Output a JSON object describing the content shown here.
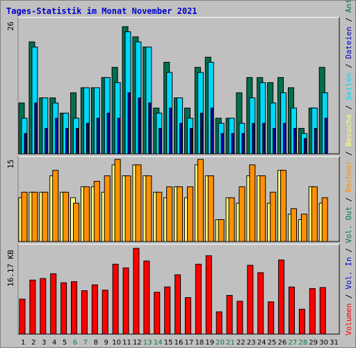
{
  "title": "Tages-Statistik im Monat November 2021",
  "colors": {
    "anfragen": "#007050",
    "dateien": "#00d8f8",
    "seiten": "#0000c0",
    "besuche": "#ffff80",
    "rechner": "#ff9000",
    "volumen": "#ff0000",
    "weekday": "#000000",
    "weekend": "#008040",
    "separator": "#000000"
  },
  "chart_data": {
    "type": "bar",
    "x": [
      "1",
      "2",
      "3",
      "4",
      "5",
      "6",
      "7",
      "8",
      "9",
      "10",
      "11",
      "12",
      "13",
      "14",
      "15",
      "16",
      "17",
      "18",
      "19",
      "20",
      "21",
      "22",
      "23",
      "24",
      "25",
      "26",
      "27",
      "28",
      "29",
      "30",
      "31"
    ],
    "weekend": [
      6,
      7,
      13,
      14,
      20,
      21,
      27,
      28
    ],
    "panels": [
      {
        "id": "hits",
        "max_label": "26",
        "max": 26,
        "series": [
          {
            "name": "Anfragen",
            "values": [
              10,
              22,
              11,
              11,
              8,
              12,
              13,
              13,
              15,
              17,
              25,
              23,
              21,
              9,
              18,
              11,
              9,
              17,
              19,
              7,
              7,
              12,
              15,
              15,
              14,
              15,
              13,
              5,
              9,
              17,
              0
            ]
          },
          {
            "name": "Dateien",
            "values": [
              7,
              21,
              11,
              10,
              8,
              7,
              13,
              13,
              15,
              14,
              24,
              22,
              21,
              8,
              16,
              11,
              7,
              16,
              18,
              6,
              7,
              6,
              11,
              14,
              10,
              12,
              9,
              4,
              9,
              12,
              0
            ]
          },
          {
            "name": "Seiten",
            "values": [
              4,
              10,
              5,
              7,
              5,
              5,
              6,
              7,
              8,
              7,
              12,
              11,
              10,
              5,
              9,
              6,
              5,
              8,
              9,
              4,
              4,
              4,
              6,
              6,
              5,
              6,
              5,
              3,
              5,
              7,
              0
            ]
          }
        ]
      },
      {
        "id": "visits",
        "max_label": "15",
        "max": 15,
        "series": [
          {
            "name": "Besuche",
            "values": [
              8,
              9,
              9,
              12,
              9,
              8,
              10,
              10,
              9,
              14,
              12,
              14,
              12,
              9,
              8,
              10,
              8,
              14,
              12,
              4,
              8,
              7,
              12,
              12,
              7,
              13,
              5,
              4,
              10,
              7,
              0
            ]
          },
          {
            "name": "Rechner",
            "values": [
              9,
              9,
              9,
              13,
              9,
              7,
              10,
              11,
              12,
              15,
              12,
              14,
              12,
              9,
              10,
              10,
              10,
              15,
              12,
              4,
              8,
              10,
              14,
              12,
              9,
              13,
              6,
              5,
              10,
              8,
              0
            ]
          }
        ]
      },
      {
        "id": "kbytes",
        "max_label": "16.17 KB",
        "max": 16.17,
        "series": [
          {
            "name": "Volumen",
            "values": [
              6.6,
              10.2,
              10.5,
              11.4,
              9.7,
              9.9,
              8.2,
              9.3,
              8.3,
              13.2,
              12.5,
              16.2,
              13.8,
              7.9,
              8.9,
              11.2,
              6.9,
              13.2,
              14.8,
              4.2,
              7.3,
              6.2,
              13.0,
              11.6,
              6.1,
              14.0,
              8.9,
              4.7,
              8.6,
              8.8,
              0
            ]
          }
        ]
      }
    ],
    "side_legend": [
      {
        "text": "Volumen",
        "color_key": "volumen"
      },
      {
        "text": " / ",
        "color_key": "separator"
      },
      {
        "text": "Vol. In",
        "color_key": "seiten"
      },
      {
        "text": " / ",
        "color_key": "separator"
      },
      {
        "text": "Vol. Out",
        "color_key": "anfragen"
      },
      {
        "text": " / ",
        "color_key": "separator"
      },
      {
        "text": "Rechner",
        "color_key": "rechner"
      },
      {
        "text": " / ",
        "color_key": "separator"
      },
      {
        "text": "Besuche",
        "color_key": "besuche"
      },
      {
        "text": " / ",
        "color_key": "separator"
      },
      {
        "text": "Seiten",
        "color_key": "dateien"
      },
      {
        "text": " / ",
        "color_key": "separator"
      },
      {
        "text": "Dateien",
        "color_key": "seiten"
      },
      {
        "text": " / ",
        "color_key": "separator"
      },
      {
        "text": "Anfragen",
        "color_key": "anfragen"
      }
    ]
  }
}
